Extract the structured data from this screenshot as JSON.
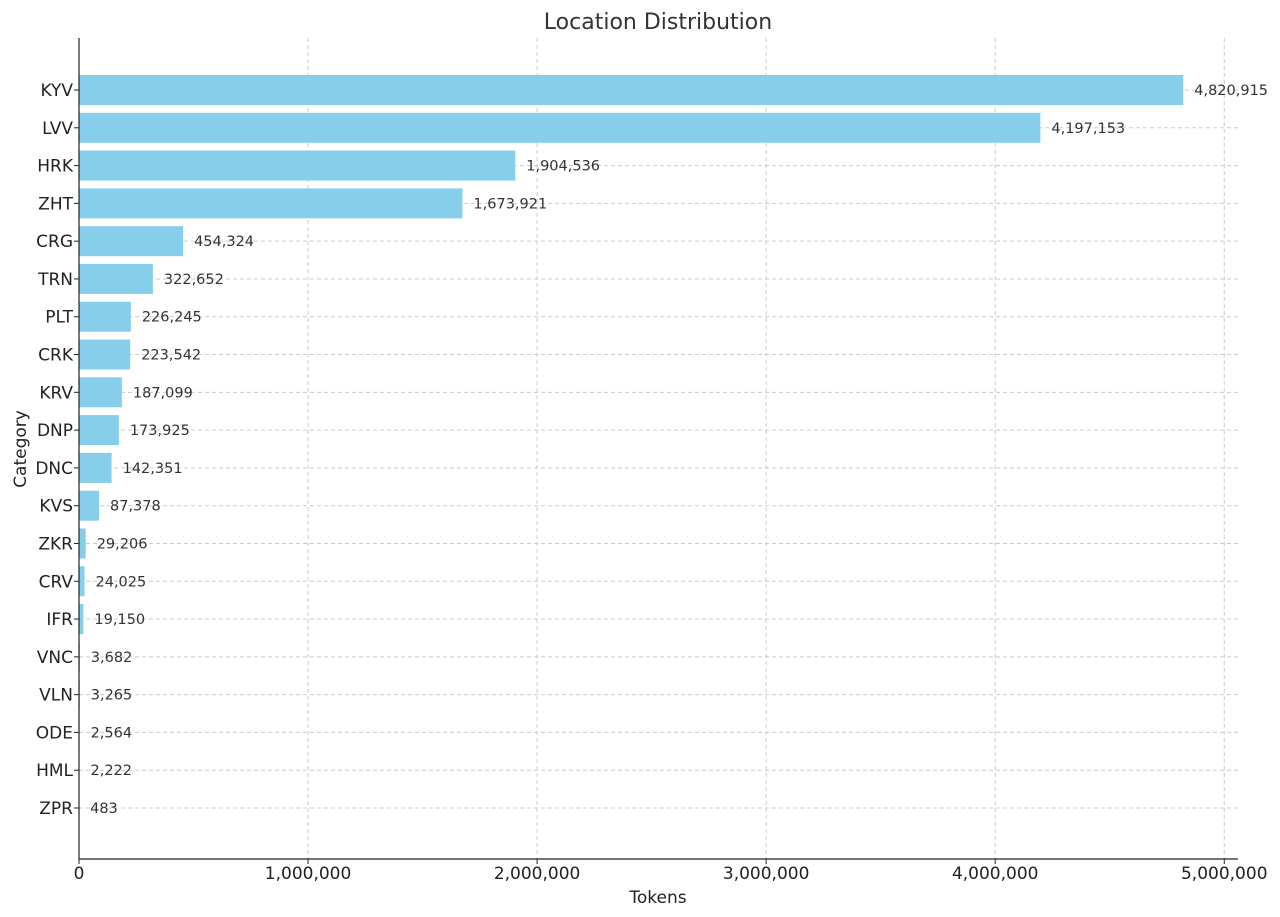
{
  "chart_data": {
    "type": "bar",
    "orientation": "horizontal",
    "title": "Location Distribution",
    "xlabel": "Tokens",
    "ylabel": "Category",
    "categories": [
      "KYV",
      "LVV",
      "HRK",
      "ZHT",
      "CRG",
      "TRN",
      "PLT",
      "CRK",
      "KRV",
      "DNP",
      "DNC",
      "KVS",
      "ZKR",
      "CRV",
      "IFR",
      "VNC",
      "VLN",
      "ODE",
      "HML",
      "ZPR"
    ],
    "values": [
      4820915,
      4197153,
      1904536,
      1673921,
      454324,
      322652,
      226245,
      223542,
      187099,
      173925,
      142351,
      87378,
      29206,
      24025,
      19150,
      3682,
      3265,
      2564,
      2222,
      483
    ],
    "data_labels": [
      "4,820,915",
      "4,197,153",
      "1,904,536",
      "1,673,921",
      "454,324",
      "322,652",
      "226,245",
      "223,542",
      "187,099",
      "173,925",
      "142,351",
      "87,378",
      "29,206",
      "24,025",
      "19,150",
      "3,682",
      "3,265",
      "2,564",
      "2,222",
      "483"
    ],
    "xlim": [
      0,
      5060000
    ],
    "xticks": [
      0,
      1000000,
      2000000,
      3000000,
      4000000,
      5000000
    ],
    "xtick_labels": [
      "0",
      "1,000,000",
      "2,000,000",
      "3,000,000",
      "4,000,000",
      "5,000,000"
    ],
    "grid": true,
    "bar_color": "#87CEEB"
  }
}
